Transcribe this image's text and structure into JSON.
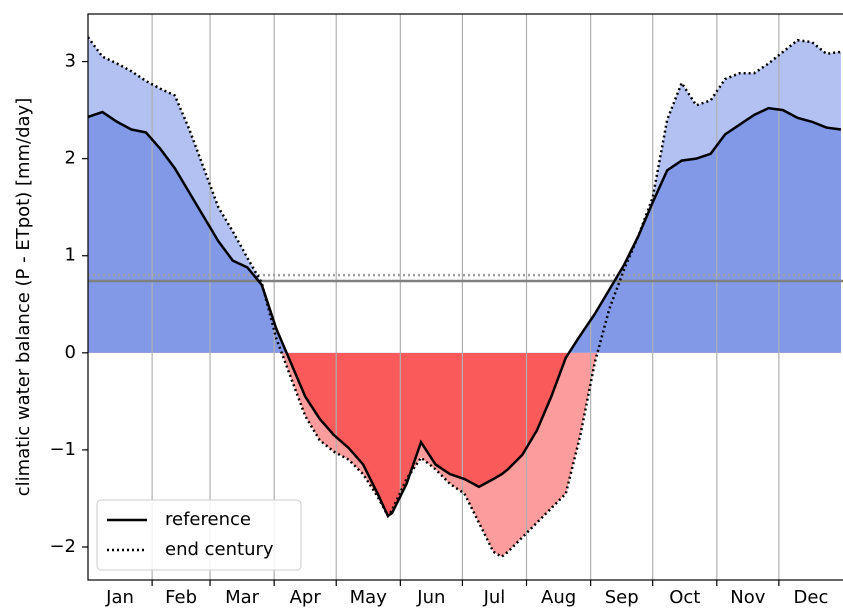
{
  "chart_data": {
    "type": "line",
    "ylabel": "climatic water balance (P - ETpot) [mm/day]",
    "x": [
      0,
      7,
      14,
      21,
      28,
      35,
      42,
      49,
      56,
      63,
      70,
      77,
      84,
      91,
      98,
      105,
      112,
      119,
      126,
      133,
      140,
      145,
      147,
      154,
      161,
      168,
      175,
      182,
      189,
      196,
      200,
      203,
      210,
      217,
      224,
      231,
      238,
      245,
      252,
      259,
      266,
      273,
      280,
      287,
      294,
      301,
      308,
      315,
      322,
      329,
      336,
      343,
      350,
      357,
      364
    ],
    "series": [
      {
        "name": "reference",
        "color": "#000000",
        "dash": "solid",
        "fill_positive": "#8199e6",
        "fill_negative": "#fb5a5a",
        "values": [
          2.43,
          2.48,
          2.38,
          2.3,
          2.27,
          2.1,
          1.9,
          1.65,
          1.4,
          1.15,
          0.95,
          0.88,
          0.7,
          0.25,
          -0.1,
          -0.45,
          -0.68,
          -0.85,
          -0.98,
          -1.15,
          -1.45,
          -1.68,
          -1.65,
          -1.35,
          -0.92,
          -1.15,
          -1.25,
          -1.3,
          -1.38,
          -1.3,
          -1.25,
          -1.2,
          -1.05,
          -0.8,
          -0.45,
          -0.05,
          0.18,
          0.4,
          0.65,
          0.9,
          1.2,
          1.55,
          1.88,
          1.98,
          2.0,
          2.05,
          2.25,
          2.35,
          2.45,
          2.52,
          2.5,
          2.42,
          2.38,
          2.32,
          2.3
        ]
      },
      {
        "name": "end century",
        "color": "#000000",
        "dash": "dotted",
        "fill_positive": "#b3c1f2",
        "fill_negative": "#fd9c9c",
        "values": [
          3.25,
          3.05,
          2.98,
          2.9,
          2.8,
          2.72,
          2.65,
          2.3,
          1.9,
          1.5,
          1.25,
          0.98,
          0.72,
          0.15,
          -0.25,
          -0.65,
          -0.9,
          -1.02,
          -1.1,
          -1.25,
          -1.48,
          -1.68,
          -1.62,
          -1.3,
          -1.08,
          -1.2,
          -1.35,
          -1.45,
          -1.75,
          -2.05,
          -2.1,
          -2.05,
          -1.9,
          -1.75,
          -1.6,
          -1.45,
          -0.85,
          -0.1,
          0.45,
          0.85,
          1.2,
          1.6,
          2.4,
          2.78,
          2.55,
          2.6,
          2.82,
          2.88,
          2.88,
          2.98,
          3.1,
          3.22,
          3.2,
          3.08,
          3.1
        ]
      }
    ],
    "hlines": [
      {
        "value": 0.74,
        "color": "#808080",
        "dash": "solid"
      },
      {
        "value": 0.8,
        "color": "#a0a0a0",
        "dash": "dotted"
      }
    ],
    "xlim": [
      0,
      365
    ],
    "xticks": [
      31,
      59,
      90,
      120,
      151,
      181,
      212,
      243,
      273,
      304,
      334
    ],
    "xticklabels": [
      {
        "value": 15.5,
        "label": "Jan"
      },
      {
        "value": 45,
        "label": "Feb"
      },
      {
        "value": 74.5,
        "label": "Mar"
      },
      {
        "value": 105,
        "label": "Apr"
      },
      {
        "value": 135.5,
        "label": "May"
      },
      {
        "value": 166,
        "label": "Jun"
      },
      {
        "value": 196.5,
        "label": "Jul"
      },
      {
        "value": 227.5,
        "label": "Aug"
      },
      {
        "value": 258,
        "label": "Sep"
      },
      {
        "value": 288.5,
        "label": "Oct"
      },
      {
        "value": 319,
        "label": "Nov"
      },
      {
        "value": 349.5,
        "label": "Dec"
      }
    ],
    "ylim": [
      -2.34,
      3.49
    ],
    "yticks": [
      {
        "value": -2,
        "label": "−2"
      },
      {
        "value": -1,
        "label": "−1"
      },
      0,
      1,
      2,
      3
    ],
    "grid": "x",
    "legend": "lower left"
  }
}
